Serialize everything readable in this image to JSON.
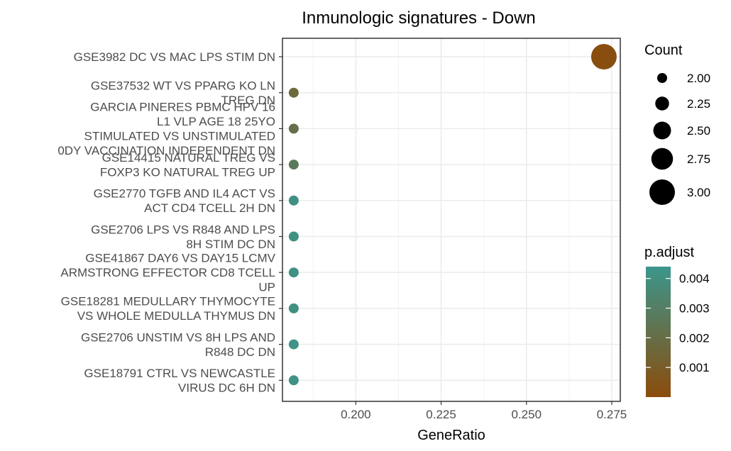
{
  "chart_data": {
    "type": "scatter",
    "title": "Inmunologic signatures - Down",
    "xlabel": "GeneRatio",
    "ylabel": "",
    "xlim": [
      0.1785,
      0.2775
    ],
    "xticks": [
      "0.200",
      "0.225",
      "0.250",
      "0.275"
    ],
    "xtick_values": [
      0.2,
      0.225,
      0.25,
      0.275
    ],
    "grid": true,
    "legend_placement": "right",
    "categories": [
      [
        "GSE3982 DC VS MAC LPS STIM DN"
      ],
      [
        "GSE37532 WT VS PPARG KO LN",
        "TREG DN"
      ],
      [
        "GARCIA PINERES PBMC HPV 16",
        "L1 VLP AGE 18 25YO",
        "STIMULATED VS UNSTIMULATED",
        "0DY VACCINATION INDEPENDENT DN"
      ],
      [
        "GSE14415 NATURAL TREG VS",
        "FOXP3 KO NATURAL TREG UP"
      ],
      [
        "GSE2770 TGFB AND IL4 ACT VS",
        "ACT CD4 TCELL 2H DN"
      ],
      [
        "GSE2706 LPS VS R848 AND LPS",
        "8H STIM DC DN"
      ],
      [
        "GSE41867 DAY6 VS DAY15 LCMV",
        "ARMSTRONG EFFECTOR CD8 TCELL",
        "UP"
      ],
      [
        "GSE18281 MEDULLARY THYMOCYTE",
        "VS WHOLE MEDULLA THYMUS DN"
      ],
      [
        "GSE2706 UNSTIM VS 8H LPS AND",
        "R848 DC DN"
      ],
      [
        "GSE18791 CTRL VS NEWCASTLE",
        "VIRUS DC 6H DN"
      ]
    ],
    "x": [
      0.2727,
      0.1818,
      0.1818,
      0.1818,
      0.1818,
      0.1818,
      0.1818,
      0.1818,
      0.1818,
      0.1818
    ],
    "count": [
      3,
      2,
      2,
      2,
      2,
      2,
      2,
      2,
      2,
      2
    ],
    "p_adjust": [
      0.0001,
      0.0017,
      0.0021,
      0.0027,
      0.0041,
      0.0041,
      0.0041,
      0.0041,
      0.0042,
      0.0042
    ],
    "size_legend": {
      "title": "Count",
      "values": [
        2.0,
        2.25,
        2.5,
        2.75,
        3.0
      ],
      "labels": [
        "2.00",
        "2.25",
        "2.50",
        "2.75",
        "3.00"
      ]
    },
    "color_legend": {
      "title": "p.adjust",
      "range": [
        0.0,
        0.0044
      ],
      "ticks": [
        0.001,
        0.002,
        0.003,
        0.004
      ],
      "labels": [
        "0.001",
        "0.002",
        "0.003",
        "0.004"
      ],
      "low_color": "#8B4C0C",
      "high_color": "#3B968C"
    }
  }
}
